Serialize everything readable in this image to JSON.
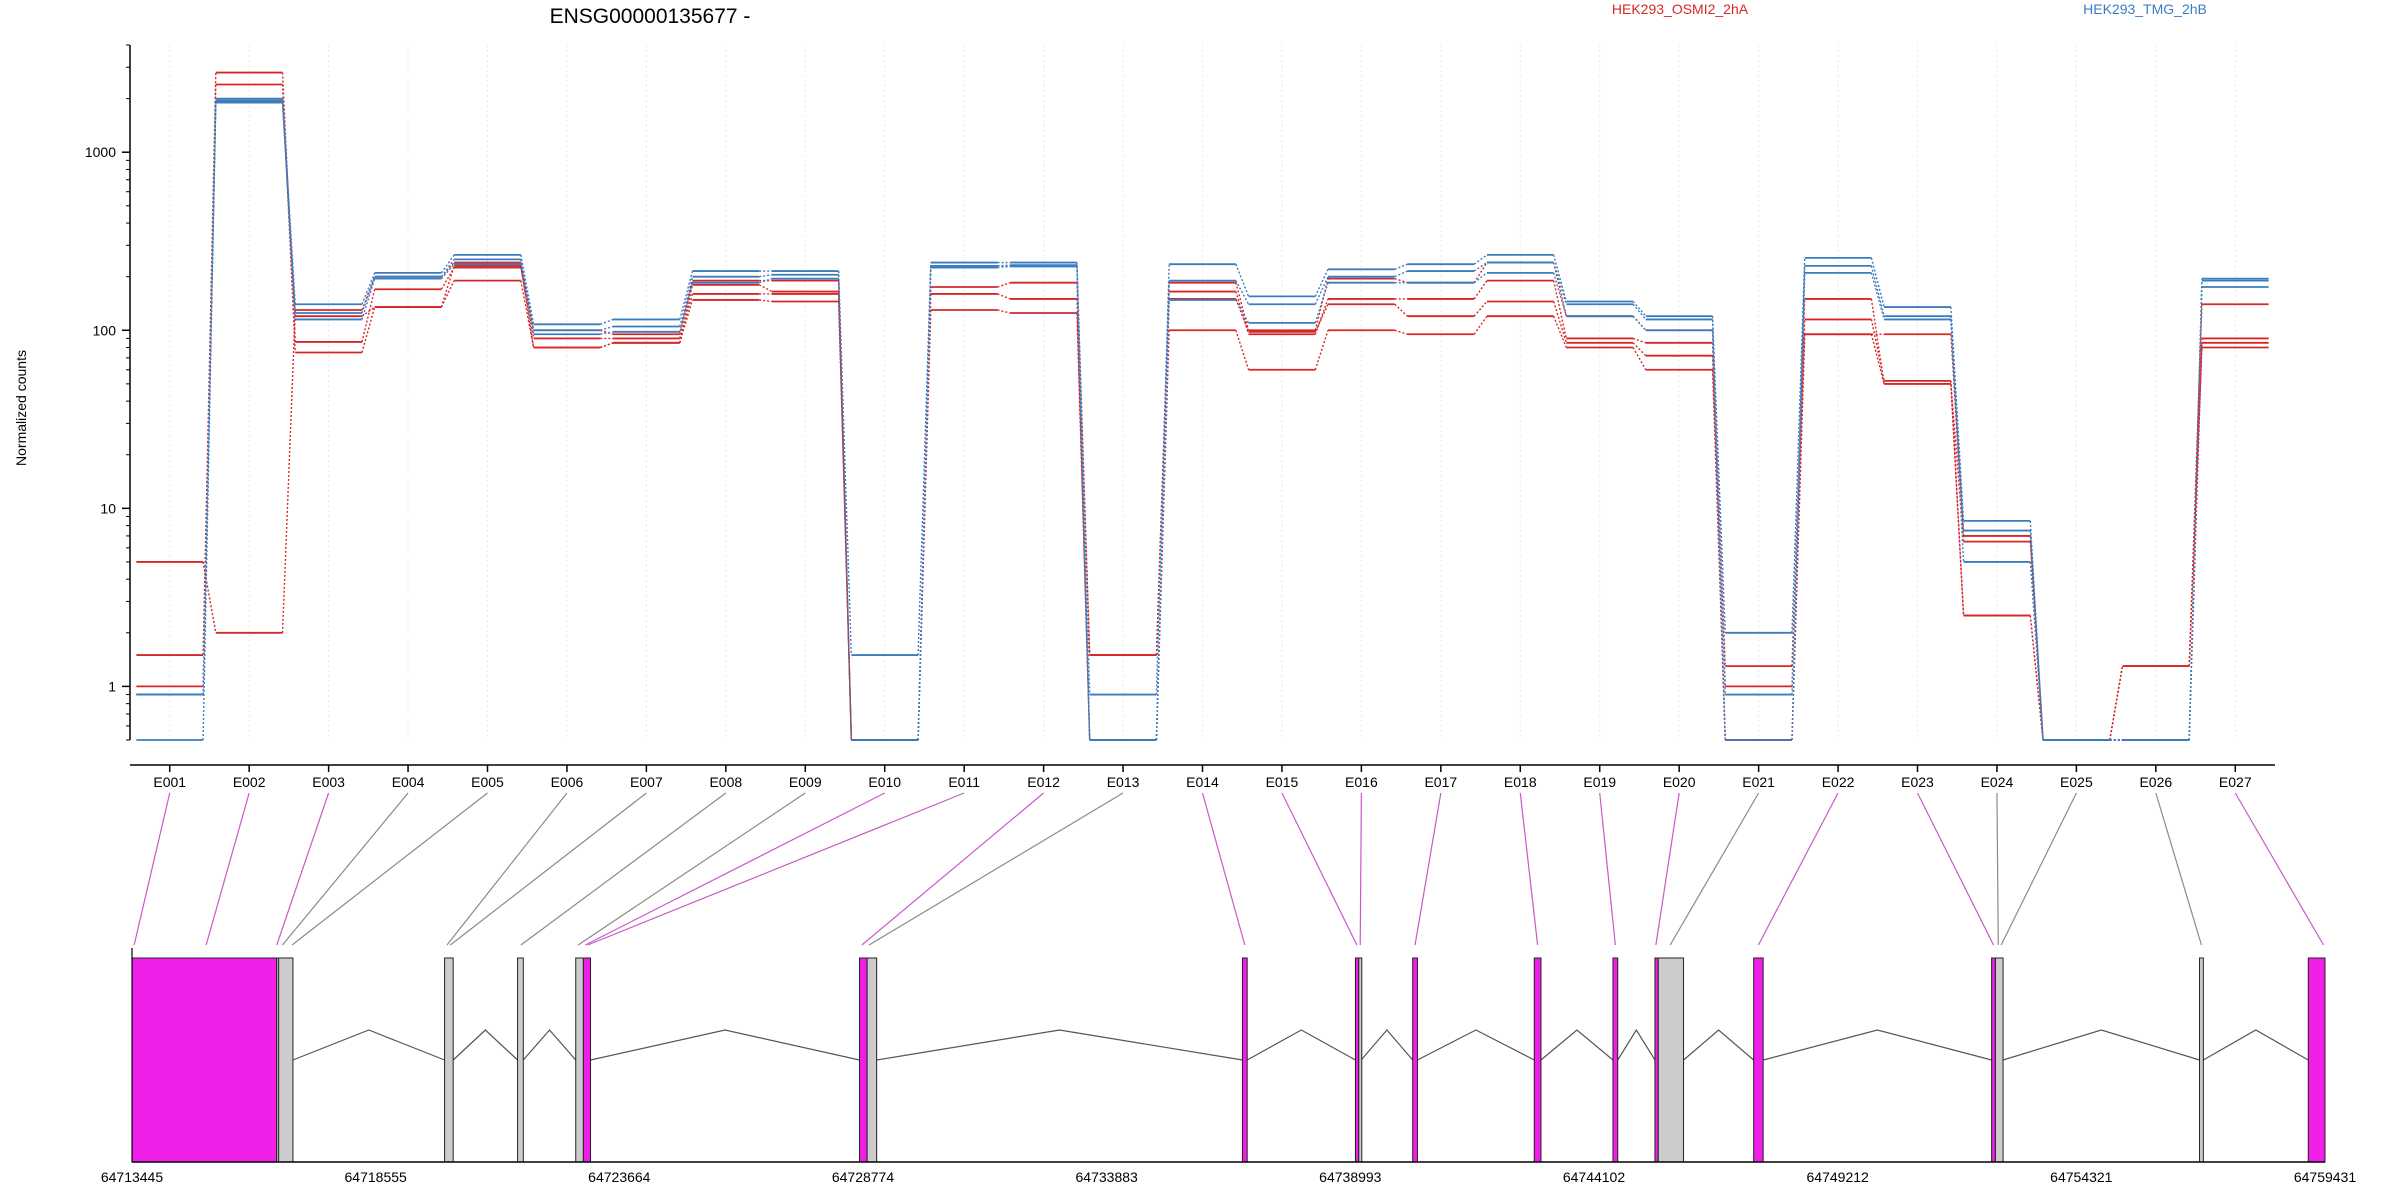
{
  "chart_data": {
    "type": "line",
    "title": "ENSG00000135677 -",
    "xlabel": "",
    "ylabel": "Normalized counts",
    "yscale": "log",
    "ylim": [
      0.5,
      4000
    ],
    "yticks": [
      1,
      10,
      100,
      1000
    ],
    "ytick_labels": [
      "1",
      "10",
      "100",
      "1000"
    ],
    "grid": "vertical lines at each exon",
    "legend_placement": "top",
    "categories": [
      "E001",
      "E002",
      "E003",
      "E004",
      "E005",
      "E006",
      "E007",
      "E008",
      "E009",
      "E010",
      "E011",
      "E012",
      "E013",
      "E014",
      "E015",
      "E016",
      "E017",
      "E018",
      "E019",
      "E020",
      "E021",
      "E022",
      "E023",
      "E024",
      "E025",
      "E026",
      "E027"
    ],
    "series": [
      {
        "group": "HEK293_OSMI2_2hA",
        "color": "#d62728",
        "values": [
          5,
          2,
          130,
          200,
          240,
          100,
          95,
          190,
          190,
          0.5,
          230,
          230,
          1.5,
          185,
          100,
          195,
          185,
          240,
          120,
          100,
          0.5,
          95,
          95,
          7,
          0.5,
          0.5,
          90
        ]
      },
      {
        "group": "HEK293_OSMI2_2hA",
        "color": "#d62728",
        "values": [
          1.5,
          2800,
          86,
          170,
          225,
          90,
          90,
          160,
          160,
          0.5,
          175,
          185,
          1.5,
          165,
          95,
          150,
          150,
          190,
          90,
          85,
          1.3,
          150,
          50,
          6.5,
          0.5,
          1.3,
          140
        ]
      },
      {
        "group": "HEK293_OSMI2_2hA",
        "color": "#d62728",
        "values": [
          1,
          2400,
          75,
          135,
          190,
          80,
          85,
          148,
          145,
          0.5,
          160,
          150,
          0.5,
          150,
          98,
          140,
          120,
          145,
          85,
          72,
          1,
          115,
          52,
          2.5,
          0.5,
          1.3,
          85
        ]
      },
      {
        "group": "HEK293_OSMI2_2hA",
        "color": "#d62728",
        "values": [
          0.9,
          1900,
          120,
          135,
          230,
          80,
          85,
          180,
          165,
          0.5,
          130,
          125,
          0.5,
          100,
          60,
          100,
          95,
          120,
          80,
          60,
          0.5,
          95,
          50,
          2.5,
          0.5,
          1.3,
          80
        ]
      },
      {
        "group": "HEK293_TMG_2hB",
        "color": "#3a7dbf",
        "values": [
          0.9,
          2000,
          140,
          210,
          265,
          108,
          115,
          215,
          215,
          1.5,
          240,
          240,
          0.9,
          235,
          155,
          220,
          235,
          265,
          145,
          120,
          2,
          255,
          135,
          8.5,
          0.5,
          0.5,
          195
        ]
      },
      {
        "group": "HEK293_TMG_2hB",
        "color": "#3a7dbf",
        "values": [
          0.9,
          1950,
          125,
          200,
          250,
          100,
          105,
          200,
          205,
          0.5,
          230,
          232,
          0.5,
          190,
          140,
          200,
          215,
          240,
          140,
          115,
          0.9,
          230,
          120,
          7.5,
          0.5,
          0.5,
          190
        ]
      },
      {
        "group": "HEK293_TMG_2hB",
        "color": "#3a7dbf",
        "values": [
          0.5,
          1900,
          115,
          195,
          235,
          95,
          98,
          185,
          195,
          0.5,
          225,
          228,
          0.5,
          148,
          110,
          185,
          185,
          210,
          120,
          100,
          0.5,
          210,
          115,
          5,
          0.5,
          0.5,
          175
        ]
      }
    ],
    "legend": [
      {
        "label": "HEK293_OSMI2_2hA",
        "color": "#d62728"
      },
      {
        "label": "HEK293_TMG_2hB",
        "color": "#3a7dbf"
      }
    ],
    "gene_model": {
      "genomic_ticks": [
        "64713445",
        "64718555",
        "64723664",
        "64728774",
        "64733883",
        "64738993",
        "64744102",
        "64749212",
        "64754321",
        "64759431"
      ],
      "genomic_range": [
        64713445,
        64759431
      ],
      "exon_fill_significant": "#f01fe8",
      "exon_fill_normal": "#cccccc",
      "exon_blocks": [
        {
          "start": 64713445,
          "end": 64716480,
          "status": "significant"
        },
        {
          "start": 64716480,
          "end": 64716520,
          "status": "normal"
        },
        {
          "start": 64716520,
          "end": 64716820,
          "status": "normal"
        },
        {
          "start": 64720000,
          "end": 64720180,
          "status": "normal"
        },
        {
          "start": 64721530,
          "end": 64721650,
          "status": "normal"
        },
        {
          "start": 64722750,
          "end": 64722910,
          "status": "normal"
        },
        {
          "start": 64722910,
          "end": 64723060,
          "status": "significant"
        },
        {
          "start": 64728700,
          "end": 64728860,
          "status": "significant"
        },
        {
          "start": 64728860,
          "end": 64729060,
          "status": "normal"
        },
        {
          "start": 64736730,
          "end": 64736830,
          "status": "significant"
        },
        {
          "start": 64739100,
          "end": 64739170,
          "status": "significant"
        },
        {
          "start": 64739170,
          "end": 64739220,
          "status": "normal"
        },
        {
          "start": 64740300,
          "end": 64740400,
          "status": "significant"
        },
        {
          "start": 64742850,
          "end": 64742990,
          "status": "significant"
        },
        {
          "start": 64744500,
          "end": 64744600,
          "status": "significant"
        },
        {
          "start": 64745380,
          "end": 64745450,
          "status": "significant"
        },
        {
          "start": 64745450,
          "end": 64745980,
          "status": "normal"
        },
        {
          "start": 64747450,
          "end": 64747650,
          "status": "significant"
        },
        {
          "start": 64752440,
          "end": 64752520,
          "status": "significant"
        },
        {
          "start": 64752520,
          "end": 64752680,
          "status": "normal"
        },
        {
          "start": 64756800,
          "end": 64756880,
          "status": "normal"
        },
        {
          "start": 64759080,
          "end": 64759431,
          "status": "significant"
        }
      ],
      "exon_mapping": [
        {
          "exon": "E001",
          "pos": 64713490,
          "status": "significant"
        },
        {
          "exon": "E002",
          "pos": 64715000,
          "status": "significant"
        },
        {
          "exon": "E003",
          "pos": 64716480,
          "status": "significant"
        },
        {
          "exon": "E004",
          "pos": 64716600,
          "status": "normal"
        },
        {
          "exon": "E005",
          "pos": 64716800,
          "status": "normal"
        },
        {
          "exon": "E006",
          "pos": 64720050,
          "status": "normal"
        },
        {
          "exon": "E007",
          "pos": 64720120,
          "status": "normal"
        },
        {
          "exon": "E008",
          "pos": 64721600,
          "status": "normal"
        },
        {
          "exon": "E009",
          "pos": 64722800,
          "status": "normal"
        },
        {
          "exon": "E010",
          "pos": 64722950,
          "status": "significant"
        },
        {
          "exon": "E011",
          "pos": 64723000,
          "status": "significant"
        },
        {
          "exon": "E012",
          "pos": 64728750,
          "status": "significant"
        },
        {
          "exon": "E013",
          "pos": 64728900,
          "status": "normal"
        },
        {
          "exon": "E014",
          "pos": 64736780,
          "status": "significant"
        },
        {
          "exon": "E015",
          "pos": 64739130,
          "status": "significant"
        },
        {
          "exon": "E016",
          "pos": 64739200,
          "status": "significant"
        },
        {
          "exon": "E017",
          "pos": 64740350,
          "status": "significant"
        },
        {
          "exon": "E018",
          "pos": 64742920,
          "status": "significant"
        },
        {
          "exon": "E019",
          "pos": 64744550,
          "status": "significant"
        },
        {
          "exon": "E020",
          "pos": 64745400,
          "status": "significant"
        },
        {
          "exon": "E021",
          "pos": 64745700,
          "status": "normal"
        },
        {
          "exon": "E022",
          "pos": 64747550,
          "status": "significant"
        },
        {
          "exon": "E023",
          "pos": 64752480,
          "status": "significant"
        },
        {
          "exon": "E024",
          "pos": 64752580,
          "status": "normal"
        },
        {
          "exon": "E025",
          "pos": 64752640,
          "status": "normal"
        },
        {
          "exon": "E026",
          "pos": 64756840,
          "status": "normal"
        },
        {
          "exon": "E027",
          "pos": 64759400,
          "status": "significant"
        }
      ]
    }
  }
}
